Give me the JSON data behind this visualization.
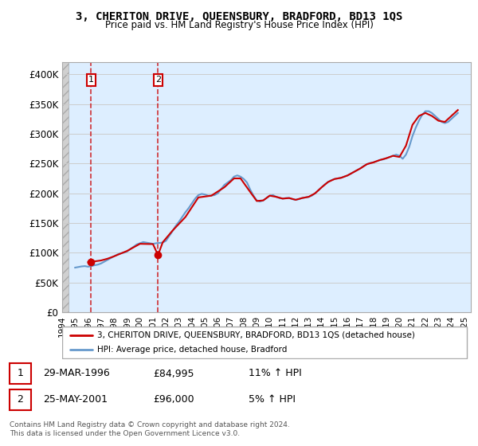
{
  "title": "3, CHERITON DRIVE, QUEENSBURY, BRADFORD, BD13 1QS",
  "subtitle": "Price paid vs. HM Land Registry's House Price Index (HPI)",
  "ylabel_ticks": [
    "£0",
    "£50K",
    "£100K",
    "£150K",
    "£200K",
    "£250K",
    "£300K",
    "£350K",
    "£400K"
  ],
  "ytick_values": [
    0,
    50000,
    100000,
    150000,
    200000,
    250000,
    300000,
    350000,
    400000
  ],
  "ylim": [
    0,
    420000
  ],
  "xlim_start": 1994.0,
  "xlim_end": 2025.5,
  "background_left_color": "#e8e8e8",
  "background_right_color": "#ddeeff",
  "grid_color": "#cccccc",
  "hpi_color": "#6699cc",
  "price_color": "#cc0000",
  "sale1_x": 1996.24,
  "sale1_y": 84995,
  "sale2_x": 2001.39,
  "sale2_y": 96000,
  "legend_line1": "3, CHERITON DRIVE, QUEENSBURY, BRADFORD, BD13 1QS (detached house)",
  "legend_line2": "HPI: Average price, detached house, Bradford",
  "annotation1_label": "1",
  "annotation2_label": "2",
  "table_row1": [
    "1",
    "29-MAR-1996",
    "£84,995",
    "11% ↑ HPI"
  ],
  "table_row2": [
    "2",
    "25-MAY-2001",
    "£96,000",
    "5% ↑ HPI"
  ],
  "footer": "Contains HM Land Registry data © Crown copyright and database right 2024.\nThis data is licensed under the Open Government Licence v3.0.",
  "sale1_vline_x": 1996.24,
  "sale2_vline_x": 2001.39,
  "hpi_data_x": [
    1995.0,
    1995.25,
    1995.5,
    1995.75,
    1996.0,
    1996.25,
    1996.5,
    1996.75,
    1997.0,
    1997.25,
    1997.5,
    1997.75,
    1998.0,
    1998.25,
    1998.5,
    1998.75,
    1999.0,
    1999.25,
    1999.5,
    1999.75,
    2000.0,
    2000.25,
    2000.5,
    2000.75,
    2001.0,
    2001.25,
    2001.5,
    2001.75,
    2002.0,
    2002.25,
    2002.5,
    2002.75,
    2003.0,
    2003.25,
    2003.5,
    2003.75,
    2004.0,
    2004.25,
    2004.5,
    2004.75,
    2005.0,
    2005.25,
    2005.5,
    2005.75,
    2006.0,
    2006.25,
    2006.5,
    2006.75,
    2007.0,
    2007.25,
    2007.5,
    2007.75,
    2008.0,
    2008.25,
    2008.5,
    2008.75,
    2009.0,
    2009.25,
    2009.5,
    2009.75,
    2010.0,
    2010.25,
    2010.5,
    2010.75,
    2011.0,
    2011.25,
    2011.5,
    2011.75,
    2012.0,
    2012.25,
    2012.5,
    2012.75,
    2013.0,
    2013.25,
    2013.5,
    2013.75,
    2014.0,
    2014.25,
    2014.5,
    2014.75,
    2015.0,
    2015.25,
    2015.5,
    2015.75,
    2016.0,
    2016.25,
    2016.5,
    2016.75,
    2017.0,
    2017.25,
    2017.5,
    2017.75,
    2018.0,
    2018.25,
    2018.5,
    2018.75,
    2019.0,
    2019.25,
    2019.5,
    2019.75,
    2020.0,
    2020.25,
    2020.5,
    2020.75,
    2021.0,
    2021.25,
    2021.5,
    2021.75,
    2022.0,
    2022.25,
    2022.5,
    2022.75,
    2023.0,
    2023.25,
    2023.5,
    2023.75,
    2024.0,
    2024.25,
    2024.5
  ],
  "hpi_data_y": [
    75000,
    76000,
    77000,
    77500,
    76500,
    77500,
    79000,
    80000,
    82000,
    85000,
    88000,
    91000,
    94000,
    97000,
    99000,
    100000,
    102000,
    106000,
    110000,
    114000,
    116000,
    118000,
    117000,
    116000,
    115000,
    116000,
    116500,
    117000,
    120000,
    128000,
    136000,
    145000,
    152000,
    160000,
    168000,
    175000,
    183000,
    191000,
    197000,
    199000,
    198000,
    196000,
    196000,
    197000,
    200000,
    207000,
    214000,
    218000,
    222000,
    228000,
    230000,
    228000,
    224000,
    218000,
    206000,
    196000,
    188000,
    186000,
    188000,
    192000,
    196000,
    197000,
    194000,
    192000,
    191000,
    192000,
    192000,
    190000,
    189000,
    190000,
    192000,
    193000,
    194000,
    196000,
    200000,
    205000,
    210000,
    215000,
    219000,
    222000,
    224000,
    225000,
    226000,
    228000,
    230000,
    233000,
    236000,
    239000,
    242000,
    246000,
    249000,
    251000,
    252000,
    254000,
    256000,
    257000,
    259000,
    261000,
    263000,
    265000,
    263000,
    258000,
    265000,
    278000,
    296000,
    310000,
    322000,
    332000,
    338000,
    338000,
    335000,
    330000,
    325000,
    320000,
    318000,
    320000,
    325000,
    330000,
    335000
  ],
  "price_line_x": [
    1996.0,
    1996.24,
    1996.5,
    1997.0,
    1997.5,
    1998.0,
    1999.0,
    2000.0,
    2001.0,
    2001.39,
    2001.75,
    2002.5,
    2003.5,
    2004.5,
    2005.5,
    2006.5,
    2007.25,
    2007.75,
    2008.5,
    2009.0,
    2009.5,
    2010.0,
    2010.5,
    2011.0,
    2011.5,
    2012.0,
    2012.5,
    2013.0,
    2013.5,
    2014.0,
    2014.5,
    2015.0,
    2015.5,
    2016.0,
    2016.5,
    2017.0,
    2017.5,
    2018.0,
    2018.5,
    2019.0,
    2019.5,
    2020.0,
    2020.5,
    2021.0,
    2021.5,
    2022.0,
    2022.5,
    2023.0,
    2023.5,
    2024.0,
    2024.5
  ],
  "price_line_y": [
    84000,
    84995,
    85500,
    87000,
    90000,
    94000,
    103000,
    115000,
    114500,
    96000,
    117500,
    137000,
    160000,
    193000,
    196000,
    210000,
    225000,
    225000,
    202000,
    187000,
    188000,
    196000,
    194000,
    191000,
    192000,
    189000,
    192000,
    194000,
    200000,
    210000,
    219000,
    224000,
    226000,
    230000,
    236000,
    242000,
    249000,
    252000,
    256000,
    259000,
    263000,
    261000,
    280000,
    315000,
    330000,
    335000,
    330000,
    322000,
    320000,
    330000,
    340000
  ]
}
